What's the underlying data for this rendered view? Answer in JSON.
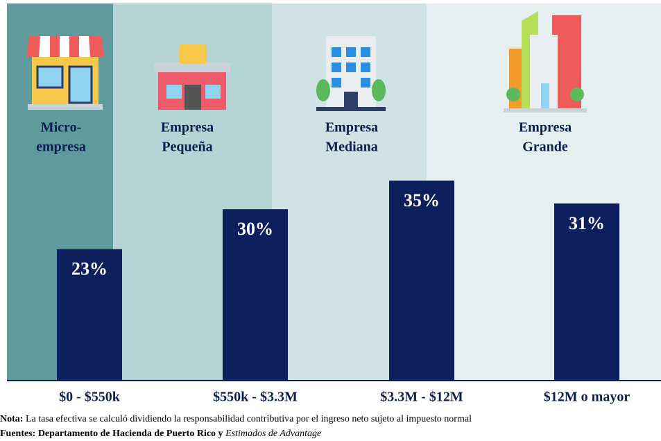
{
  "chart_data": {
    "type": "bar",
    "categories": [
      "$0 - $550k",
      "$550k - $3.3M",
      "$3.3M - $12M",
      "$12M o mayor"
    ],
    "values": [
      23,
      30,
      35,
      31
    ],
    "value_labels": [
      "23%",
      "30%",
      "35%",
      "31%"
    ],
    "color": "#0d1f5c",
    "ylim": [
      0,
      66
    ],
    "segment_labels": [
      [
        "Micro-",
        "empresa"
      ],
      [
        "Empresa",
        "Pequeña"
      ],
      [
        "Empresa",
        "Mediana"
      ],
      [
        "Empresa",
        "Grande"
      ]
    ],
    "notes": {
      "note_label": "Nota:",
      "note_text": "La tasa efectiva se calculó dividiendo la responsabilidad contributiva por el ingreso neto sujeto al impuesto normal",
      "sources_label": "Fuentes: Departamento de Hacienda de Puerto Rico y",
      "sources_italic": "Estimados de Advantage"
    }
  }
}
